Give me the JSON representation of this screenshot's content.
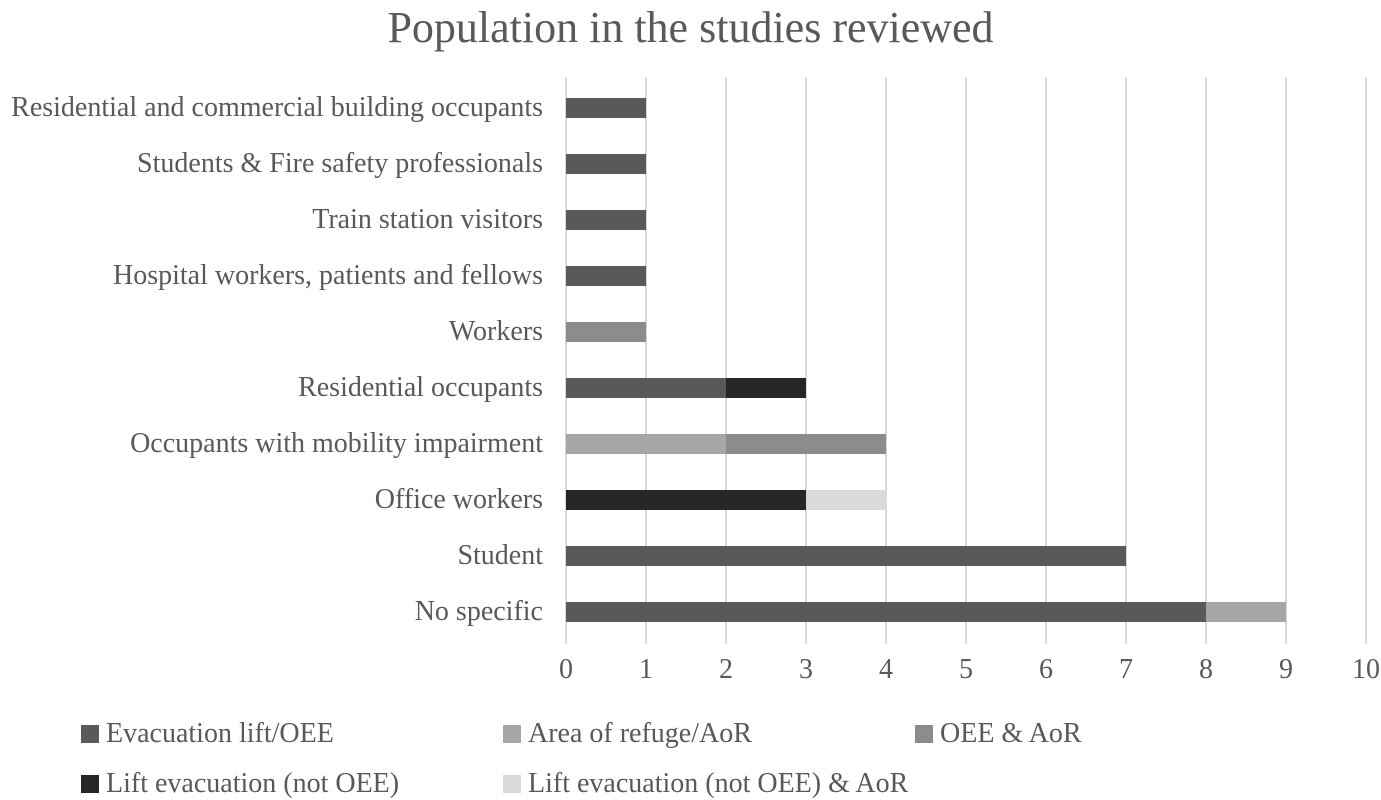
{
  "chart_data": {
    "type": "bar",
    "orientation": "horizontal",
    "stacked": true,
    "title": "Population in the studies reviewed",
    "categories": [
      "Residential and commercial building occupants",
      "Students & Fire safety professionals",
      "Train station visitors",
      "Hospital workers, patients and fellows",
      "Workers",
      "Residential occupants",
      "Occupants with mobility impairment",
      "Office workers",
      "Student",
      "No specific"
    ],
    "series": [
      {
        "name": "Evacuation lift/OEE",
        "color": "#595959",
        "values": [
          1,
          1,
          1,
          1,
          0,
          2,
          0,
          0,
          7,
          8
        ]
      },
      {
        "name": "Area of refuge/AoR",
        "color": "#A6A6A6",
        "values": [
          0,
          0,
          0,
          0,
          0,
          0,
          2,
          0,
          0,
          1
        ]
      },
      {
        "name": "OEE & AoR",
        "color": "#8C8C8C",
        "values": [
          0,
          0,
          0,
          0,
          1,
          0,
          2,
          0,
          0,
          0
        ]
      },
      {
        "name": "Lift evacuation (not OEE)",
        "color": "#262626",
        "values": [
          0,
          0,
          0,
          0,
          0,
          1,
          0,
          3,
          0,
          0
        ]
      },
      {
        "name": "Lift evacuation (not OEE) & AoR",
        "color": "#D9D9D9",
        "values": [
          0,
          0,
          0,
          0,
          0,
          0,
          0,
          1,
          0,
          0
        ]
      }
    ],
    "xlim": [
      0,
      10
    ],
    "xticks": [
      "0",
      "1",
      "2",
      "3",
      "4",
      "5",
      "6",
      "7",
      "8",
      "9",
      "10"
    ],
    "grid": "vertical",
    "gridline_color": "#D9D9D9",
    "text_color": "#595959",
    "background_color": "#FFFFFF",
    "legend_position": "bottom",
    "legend_rows": [
      3,
      2
    ]
  }
}
